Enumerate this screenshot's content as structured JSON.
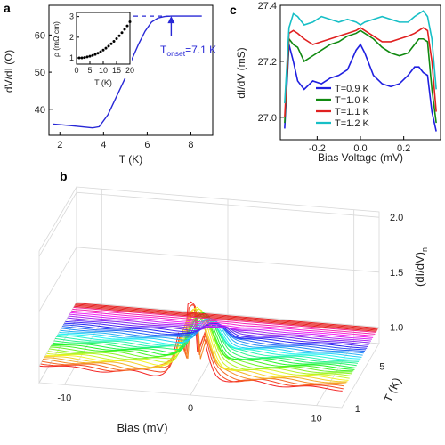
{
  "panels": {
    "a": "a",
    "b": "b",
    "c": "c"
  },
  "chart_data": [
    {
      "panel": "a",
      "type": "line",
      "xlabel": "T (K)",
      "ylabel": "dV/dI (Ω)",
      "xlim": [
        1.5,
        9.0
      ],
      "ylim": [
        33,
        68
      ],
      "xticks": [
        "2",
        "4",
        "6",
        "8"
      ],
      "yticks": [
        "40",
        "50",
        "60"
      ],
      "color": "#2828d6",
      "series": [
        {
          "x": [
            1.7,
            2.5,
            3.0,
            3.5,
            3.8,
            4.2,
            4.6,
            5.0,
            5.3,
            5.6,
            5.9,
            6.2,
            6.5,
            6.8,
            7.1,
            7.5,
            8.0,
            8.5
          ],
          "values": [
            36.0,
            35.6,
            35.3,
            35.0,
            35.3,
            38.5,
            43.5,
            48.5,
            53.5,
            57.5,
            61.0,
            63.5,
            64.6,
            65.0,
            65.1,
            65.1,
            65.1,
            65.1
          ]
        }
      ],
      "annotation": {
        "text_main": "T",
        "text_sub": "onset",
        "text_tail": "=7.1 K",
        "x": 7.1,
        "baseline_y": 65.1
      },
      "inset": {
        "type": "scatter",
        "xlabel": "T (K)",
        "ylabel": "ρ (mΩ cm)",
        "xlim": [
          0,
          20
        ],
        "ylim": [
          0.7,
          3.2
        ],
        "xticks": [
          "0",
          "5",
          "10",
          "15",
          "20"
        ],
        "yticks": [
          "1",
          "2",
          "3"
        ],
        "x": [
          1,
          2,
          3,
          4,
          5,
          6,
          7,
          8,
          9,
          10,
          11,
          12,
          13,
          14,
          15,
          16,
          17,
          18,
          19,
          20
        ],
        "values": [
          1.0,
          1.0,
          1.02,
          1.05,
          1.08,
          1.12,
          1.17,
          1.23,
          1.3,
          1.38,
          1.47,
          1.57,
          1.68,
          1.8,
          1.93,
          2.07,
          2.22,
          2.38,
          2.55,
          2.75
        ]
      }
    },
    {
      "panel": "c",
      "type": "line",
      "xlabel": "Bias Voltage (mV)",
      "ylabel": "dI/dV (mS)",
      "xlim": [
        -0.37,
        0.37
      ],
      "ylim": [
        26.92,
        27.4
      ],
      "xticks": [
        "-0.2",
        "0.0",
        "0.2"
      ],
      "yticks": [
        "27.0",
        "27.2",
        "27.4"
      ],
      "x": [
        -0.35,
        -0.33,
        -0.31,
        -0.29,
        -0.26,
        -0.22,
        -0.18,
        -0.14,
        -0.1,
        -0.06,
        -0.02,
        0.0,
        0.02,
        0.06,
        0.1,
        0.14,
        0.18,
        0.22,
        0.25,
        0.27,
        0.29,
        0.31,
        0.33,
        0.35
      ],
      "series": [
        {
          "name": "T=0.9 K",
          "color": "#1f1fe0",
          "values": [
            26.96,
            27.26,
            27.2,
            27.13,
            27.1,
            27.13,
            27.12,
            27.14,
            27.15,
            27.17,
            27.24,
            27.26,
            27.23,
            27.15,
            27.12,
            27.11,
            27.12,
            27.15,
            27.18,
            27.18,
            27.16,
            27.15,
            27.02,
            26.95
          ]
        },
        {
          "name": "T=1.0 K",
          "color": "#118a11",
          "values": [
            26.98,
            27.28,
            27.26,
            27.25,
            27.2,
            27.22,
            27.24,
            27.26,
            27.27,
            27.29,
            27.3,
            27.31,
            27.3,
            27.28,
            27.25,
            27.23,
            27.22,
            27.23,
            27.26,
            27.28,
            27.28,
            27.27,
            27.1,
            26.98
          ]
        },
        {
          "name": "T=1.1 K",
          "color": "#e02020",
          "values": [
            27.0,
            27.3,
            27.31,
            27.3,
            27.28,
            27.26,
            27.27,
            27.28,
            27.29,
            27.3,
            27.31,
            27.32,
            27.31,
            27.29,
            27.27,
            27.27,
            27.28,
            27.29,
            27.3,
            27.31,
            27.32,
            27.31,
            27.2,
            27.02
          ]
        },
        {
          "name": "T=1.2 K",
          "color": "#17bfc6",
          "values": [
            27.05,
            27.32,
            27.37,
            27.36,
            27.33,
            27.34,
            27.36,
            27.35,
            27.34,
            27.35,
            27.34,
            27.33,
            27.34,
            27.35,
            27.36,
            27.35,
            27.34,
            27.34,
            27.36,
            27.37,
            27.38,
            27.36,
            27.28,
            27.1
          ]
        }
      ]
    },
    {
      "panel": "b",
      "type": "line",
      "xlabel": "Bias (mV)",
      "ylabel": "T (K)",
      "zlabel": "(dI/dV)",
      "zlabel_sub": "n",
      "xlim": [
        -12,
        12
      ],
      "ylim": [
        0.9,
        7.0
      ],
      "zlim": [
        0.85,
        2.05
      ],
      "xticks": [
        "-10",
        "0",
        "10"
      ],
      "yticks": [
        "1",
        "5"
      ],
      "zticks": [
        "1.0",
        "1.5",
        "2.0"
      ],
      "temperature_range": [
        1,
        6.5
      ],
      "trace_count": 34,
      "peak_height": 1.65,
      "background_level": 1.0,
      "low_temperature_dip": 0.6,
      "flat_lines": 4
    }
  ]
}
